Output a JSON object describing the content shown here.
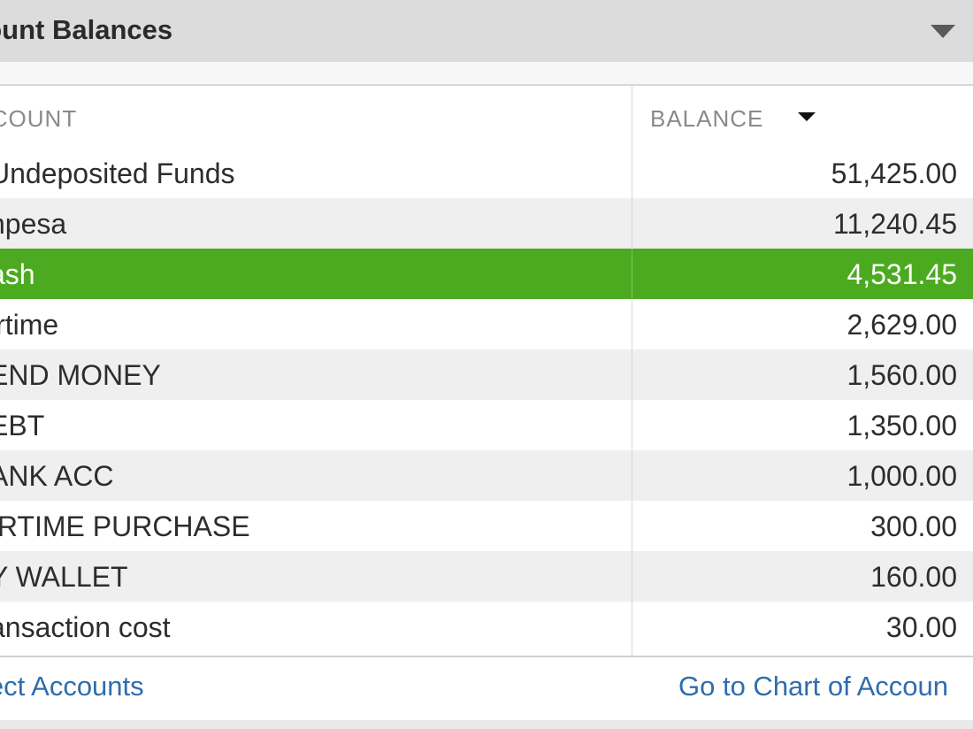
{
  "widget": {
    "title": "count Balances",
    "colors": {
      "title_bar": "#dcdcdc",
      "selected_row": "#4caa21",
      "alt_row": "#efefef",
      "link": "#2f6dad"
    }
  },
  "table": {
    "headers": {
      "account": "CCOUNT",
      "balance": "BALANCE"
    },
    "sort_icon": "sort-descending-icon",
    "rows": [
      {
        "name": "Undeposited Funds",
        "balance": "51,425.00"
      },
      {
        "name": "npesa",
        "balance": "11,240.45"
      },
      {
        "name": "ash",
        "balance": "4,531.45",
        "selected": true
      },
      {
        "name": "irtime",
        "balance": "2,629.00"
      },
      {
        "name": "END MONEY",
        "balance": "1,560.00"
      },
      {
        "name": "EBT",
        "balance": "1,350.00"
      },
      {
        "name": "ANK ACC",
        "balance": "1,000.00"
      },
      {
        "name": "IRTIME PURCHASE",
        "balance": "300.00"
      },
      {
        "name": "Y WALLET",
        "balance": "160.00"
      },
      {
        "name": "ansaction cost",
        "balance": "30.00"
      }
    ]
  },
  "footer": {
    "left_link": "lect Accounts",
    "right_link": "Go to Chart of Accoun"
  }
}
